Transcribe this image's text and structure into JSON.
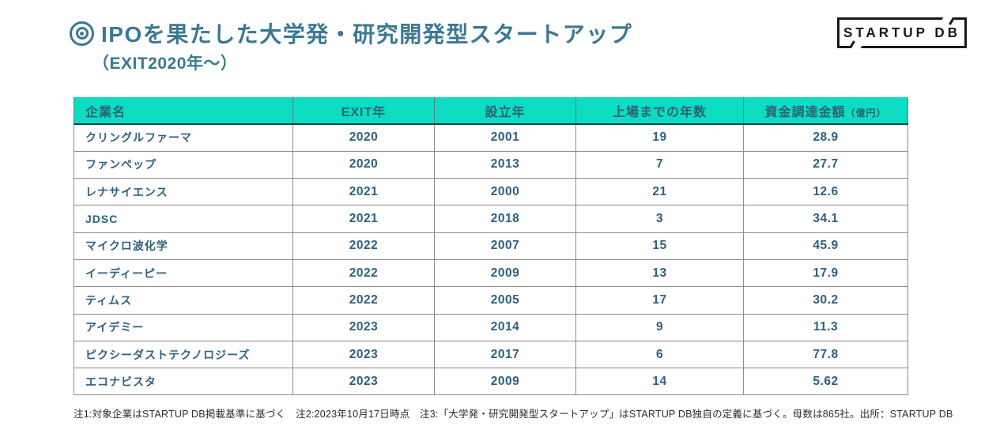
{
  "header": {
    "title": "IPOを果たした大学発・研究開発型スタートアップ",
    "subtitle": "（EXIT2020年〜）",
    "logo_text": "STARTUP DB"
  },
  "table": {
    "columns": [
      {
        "key": "company",
        "label": "企業名",
        "suffix": "",
        "align": "left"
      },
      {
        "key": "exit_year",
        "label": "EXIT年",
        "suffix": "",
        "align": "center"
      },
      {
        "key": "founded_year",
        "label": "設立年",
        "suffix": "",
        "align": "center"
      },
      {
        "key": "years_to_ipo",
        "label": "上場までの年数",
        "suffix": "",
        "align": "center"
      },
      {
        "key": "funding",
        "label": "資金調達金額",
        "suffix": "（億円）",
        "align": "center"
      }
    ],
    "rows": [
      {
        "company": "クリングルファーマ",
        "exit_year": "2020",
        "founded_year": "2001",
        "years_to_ipo": "19",
        "funding": "28.9"
      },
      {
        "company": "ファンペップ",
        "exit_year": "2020",
        "founded_year": "2013",
        "years_to_ipo": "7",
        "funding": "27.7"
      },
      {
        "company": "レナサイエンス",
        "exit_year": "2021",
        "founded_year": "2000",
        "years_to_ipo": "21",
        "funding": "12.6"
      },
      {
        "company": "JDSC",
        "exit_year": "2021",
        "founded_year": "2018",
        "years_to_ipo": "3",
        "funding": "34.1"
      },
      {
        "company": "マイクロ波化学",
        "exit_year": "2022",
        "founded_year": "2007",
        "years_to_ipo": "15",
        "funding": "45.9"
      },
      {
        "company": "イーディーピー",
        "exit_year": "2022",
        "founded_year": "2009",
        "years_to_ipo": "13",
        "funding": "17.9"
      },
      {
        "company": "ティムス",
        "exit_year": "2022",
        "founded_year": "2005",
        "years_to_ipo": "17",
        "funding": "30.2"
      },
      {
        "company": "アイデミー",
        "exit_year": "2023",
        "founded_year": "2014",
        "years_to_ipo": "9",
        "funding": "11.3"
      },
      {
        "company": "ピクシーダストテクノロジーズ",
        "exit_year": "2023",
        "founded_year": "2017",
        "years_to_ipo": "6",
        "funding": "77.8"
      },
      {
        "company": "エコナビスタ",
        "exit_year": "2023",
        "founded_year": "2009",
        "years_to_ipo": "14",
        "funding": "5.62"
      }
    ]
  },
  "footnote": "注1:対象企業はSTARTUP DB掲載基準に基づく　注2:2023年10月17日時点　注3:「大学発・研究開発型スタートアップ」はSTARTUP DB独自の定義に基づく。母数は865社。出所：STARTUP DB",
  "colors": {
    "accent_teal": "#0cdcc3",
    "title_blue": "#3a7893",
    "cell_text_blue": "#2e6080",
    "header_text": "#2d6274",
    "grid_gray": "#8c8c8c",
    "logo_black": "#191919"
  },
  "chart_data": {
    "type": "table",
    "title": "IPOを果たした大学発・研究開発型スタートアップ（EXIT2020年〜）",
    "columns": [
      "企業名",
      "EXIT年",
      "設立年",
      "上場までの年数",
      "資金調達金額（億円）"
    ],
    "rows": [
      [
        "クリングルファーマ",
        2020,
        2001,
        19,
        28.9
      ],
      [
        "ファンペップ",
        2020,
        2013,
        7,
        27.7
      ],
      [
        "レナサイエンス",
        2021,
        2000,
        21,
        12.6
      ],
      [
        "JDSC",
        2021,
        2018,
        3,
        34.1
      ],
      [
        "マイクロ波化学",
        2022,
        2007,
        15,
        45.9
      ],
      [
        "イーディーピー",
        2022,
        2009,
        13,
        17.9
      ],
      [
        "ティムス",
        2022,
        2005,
        17,
        30.2
      ],
      [
        "アイデミー",
        2023,
        2014,
        9,
        11.3
      ],
      [
        "ピクシーダストテクノロジーズ",
        2023,
        2017,
        6,
        77.8
      ],
      [
        "エコナビスタ",
        2023,
        2009,
        14,
        5.62
      ]
    ],
    "source": "STARTUP DB",
    "sample_size_note": "母数は865社"
  }
}
